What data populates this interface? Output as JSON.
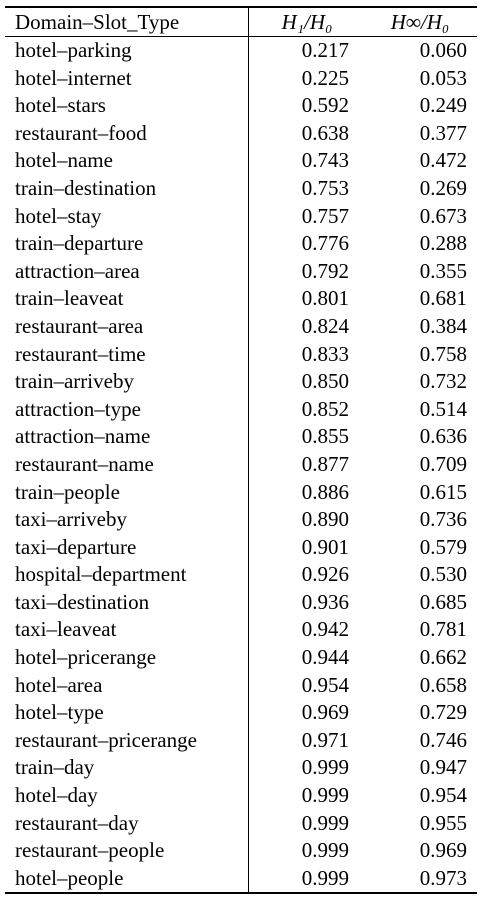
{
  "table": {
    "headers": [
      "Domain–Slot_Type",
      "H₁/H₀",
      "H∞/H₀"
    ],
    "rows": [
      [
        "hotel–parking",
        "0.217",
        "0.060"
      ],
      [
        "hotel–internet",
        "0.225",
        "0.053"
      ],
      [
        "hotel–stars",
        "0.592",
        "0.249"
      ],
      [
        "restaurant–food",
        "0.638",
        "0.377"
      ],
      [
        "hotel–name",
        "0.743",
        "0.472"
      ],
      [
        "train–destination",
        "0.753",
        "0.269"
      ],
      [
        "hotel–stay",
        "0.757",
        "0.673"
      ],
      [
        "train–departure",
        "0.776",
        "0.288"
      ],
      [
        "attraction–area",
        "0.792",
        "0.355"
      ],
      [
        "train–leaveat",
        "0.801",
        "0.681"
      ],
      [
        "restaurant–area",
        "0.824",
        "0.384"
      ],
      [
        "restaurant–time",
        "0.833",
        "0.758"
      ],
      [
        "train–arriveby",
        "0.850",
        "0.732"
      ],
      [
        "attraction–type",
        "0.852",
        "0.514"
      ],
      [
        "attraction–name",
        "0.855",
        "0.636"
      ],
      [
        "restaurant–name",
        "0.877",
        "0.709"
      ],
      [
        "train–people",
        "0.886",
        "0.615"
      ],
      [
        "taxi–arriveby",
        "0.890",
        "0.736"
      ],
      [
        "taxi–departure",
        "0.901",
        "0.579"
      ],
      [
        "hospital–department",
        "0.926",
        "0.530"
      ],
      [
        "taxi–destination",
        "0.936",
        "0.685"
      ],
      [
        "taxi–leaveat",
        "0.942",
        "0.781"
      ],
      [
        "hotel–pricerange",
        "0.944",
        "0.662"
      ],
      [
        "hotel–area",
        "0.954",
        "0.658"
      ],
      [
        "hotel–type",
        "0.969",
        "0.729"
      ],
      [
        "restaurant–pricerange",
        "0.971",
        "0.746"
      ],
      [
        "train–day",
        "0.999",
        "0.947"
      ],
      [
        "hotel–day",
        "0.999",
        "0.954"
      ],
      [
        "restaurant–day",
        "0.999",
        "0.955"
      ],
      [
        "restaurant–people",
        "0.999",
        "0.969"
      ],
      [
        "hotel–people",
        "0.999",
        "0.973"
      ]
    ]
  }
}
